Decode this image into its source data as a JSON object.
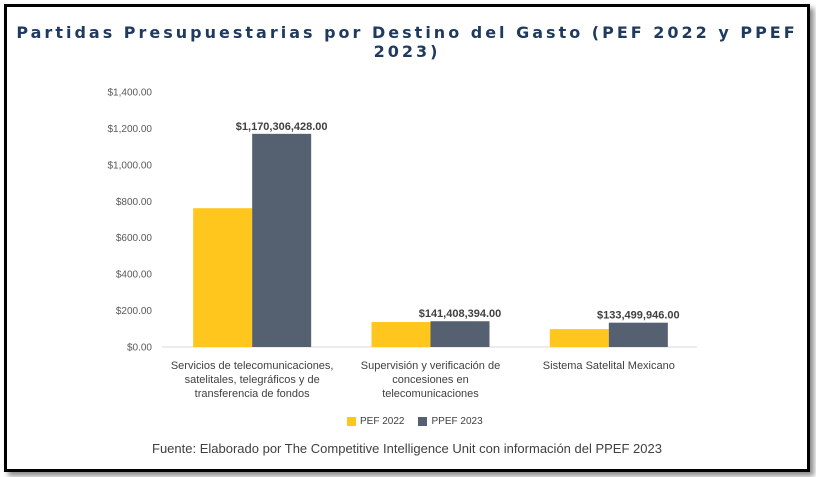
{
  "title": "Partidas Presupuestarias por Destino del Gasto (PEF 2022 y PPEF 2023)",
  "source": "Fuente: Elaborado por The Competitive Intelligence Unit con información del PPEF 2023",
  "colors": {
    "pef2022": "#FFC61E",
    "ppef2023": "#556070",
    "axis": "#D9D9D9"
  },
  "chart_data": {
    "type": "bar",
    "categories": [
      [
        "Servicios de telecomunicaciones,",
        "satelitales, telegráficos y de",
        "transferencia de fondos"
      ],
      [
        "Supervisión y verificación de",
        "concesiones en",
        "telecomunicaciones"
      ],
      [
        "Sistema Satelital Mexicano"
      ]
    ],
    "series": [
      {
        "name": "PEF 2022",
        "values": [
          762,
          137,
          98
        ]
      },
      {
        "name": "PPEF 2023",
        "values": [
          1170.3,
          141.4,
          133.5
        ]
      }
    ],
    "data_labels": [
      "$1,170,306,428.00",
      "$141,408,394.00",
      "$133,499,946.00"
    ],
    "y_ticks": [
      "$0.00",
      "$200.00",
      "$400.00",
      "$600.00",
      "$800.00",
      "$1,000.00",
      "$1,200.00",
      "$1,400.00"
    ],
    "ylim": [
      0,
      1400
    ],
    "grid": false,
    "legend": "bottom"
  }
}
